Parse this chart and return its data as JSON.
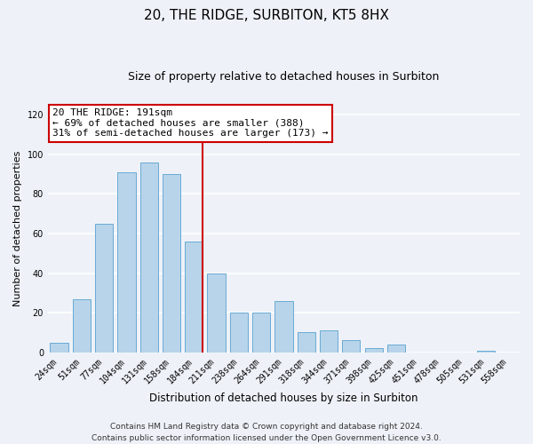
{
  "title": "20, THE RIDGE, SURBITON, KT5 8HX",
  "subtitle": "Size of property relative to detached houses in Surbiton",
  "xlabel": "Distribution of detached houses by size in Surbiton",
  "ylabel": "Number of detached properties",
  "categories": [
    "24sqm",
    "51sqm",
    "77sqm",
    "104sqm",
    "131sqm",
    "158sqm",
    "184sqm",
    "211sqm",
    "238sqm",
    "264sqm",
    "291sqm",
    "318sqm",
    "344sqm",
    "371sqm",
    "398sqm",
    "425sqm",
    "451sqm",
    "478sqm",
    "505sqm",
    "531sqm",
    "558sqm"
  ],
  "values": [
    5,
    27,
    65,
    91,
    96,
    90,
    56,
    40,
    20,
    20,
    26,
    10,
    11,
    6,
    2,
    4,
    0,
    0,
    0,
    1,
    0
  ],
  "bar_color": "#b8d4ea",
  "bar_edge_color": "#6aaad4",
  "marker_line_index": 6,
  "marker_label": "20 THE RIDGE: 191sqm",
  "annotation_line1": "← 69% of detached houses are smaller (388)",
  "annotation_line2": "31% of semi-detached houses are larger (173) →",
  "annotation_box_color": "#ffffff",
  "annotation_box_edge_color": "#cc0000",
  "marker_line_color": "#cc0000",
  "ylim": [
    0,
    125
  ],
  "yticks": [
    0,
    20,
    40,
    60,
    80,
    100,
    120
  ],
  "footer_line1": "Contains HM Land Registry data © Crown copyright and database right 2024.",
  "footer_line2": "Contains public sector information licensed under the Open Government Licence v3.0.",
  "background_color": "#eef2f8",
  "grid_color": "#ffffff",
  "title_fontsize": 11,
  "subtitle_fontsize": 9,
  "xlabel_fontsize": 8.5,
  "ylabel_fontsize": 8,
  "tick_fontsize": 7,
  "footer_fontsize": 6.5,
  "annotation_fontsize": 8
}
